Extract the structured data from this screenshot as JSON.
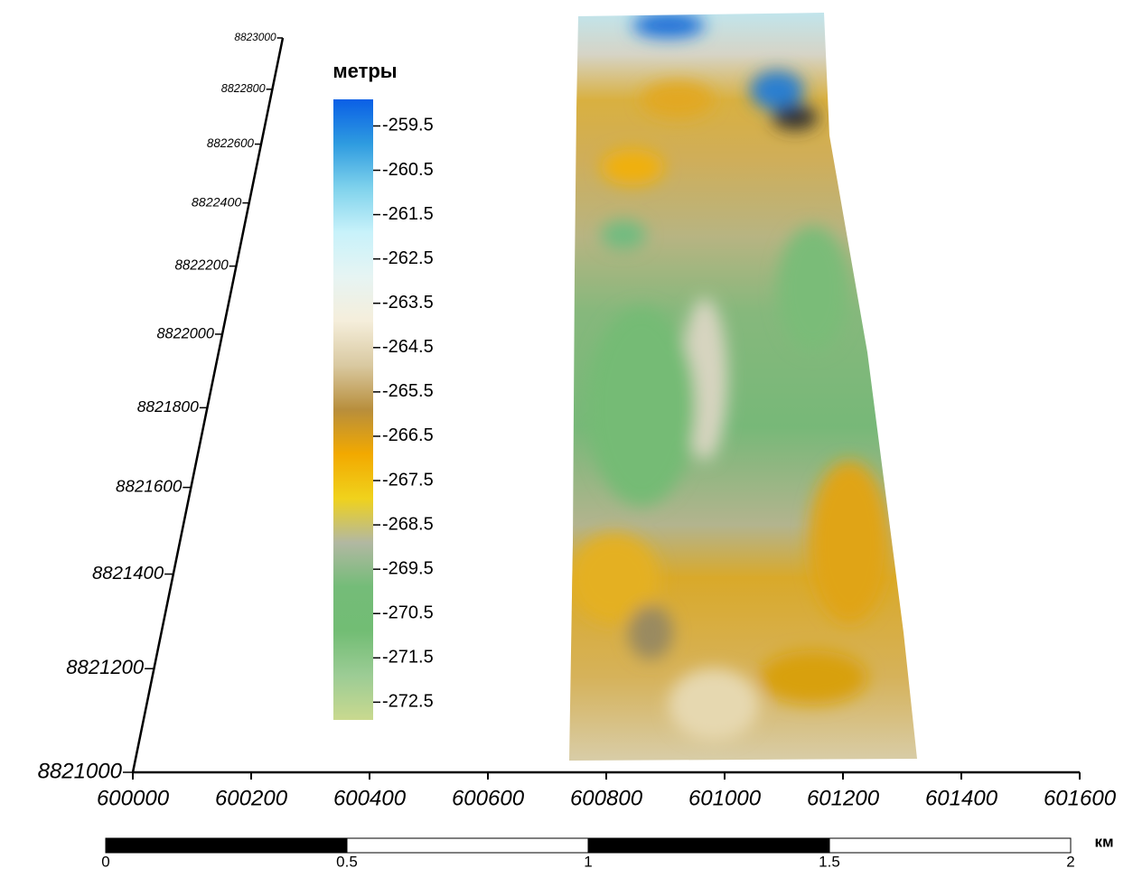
{
  "chart_data": {
    "type": "surface",
    "xlim": [
      600000,
      601600
    ],
    "xticks": [
      600000,
      600200,
      600400,
      600600,
      600800,
      601000,
      601200,
      601400,
      601600
    ],
    "ylim": [
      8821000,
      8823000
    ],
    "yticks": [
      8821000,
      8821200,
      8821400,
      8821600,
      8821800,
      8822000,
      8822200,
      8822400,
      8822600,
      8822800,
      8823000
    ],
    "colorbar": {
      "label": "метры",
      "clim": [
        -272.9,
        -258.9
      ],
      "ticks": [
        -259.5,
        -260.5,
        -261.5,
        -262.5,
        -263.5,
        -264.5,
        -265.5,
        -266.5,
        -267.5,
        -268.5,
        -269.5,
        -270.5,
        -271.5,
        -272.5
      ],
      "colors": [
        "#c9d98f",
        "#9ccc95",
        "#72bd74",
        "#74bc78",
        "#b2b8a2",
        "#f0d21c",
        "#f2a900",
        "#b88e3c",
        "#d9c9a1",
        "#f5eedb",
        "#e6f4f3",
        "#c8f2fa",
        "#7fd2ec",
        "#2e9be0",
        "#0a5fe6"
      ]
    },
    "scale_bar": {
      "ticks": [
        0,
        0.5,
        1,
        1.5,
        2
      ],
      "unit": "км"
    }
  }
}
